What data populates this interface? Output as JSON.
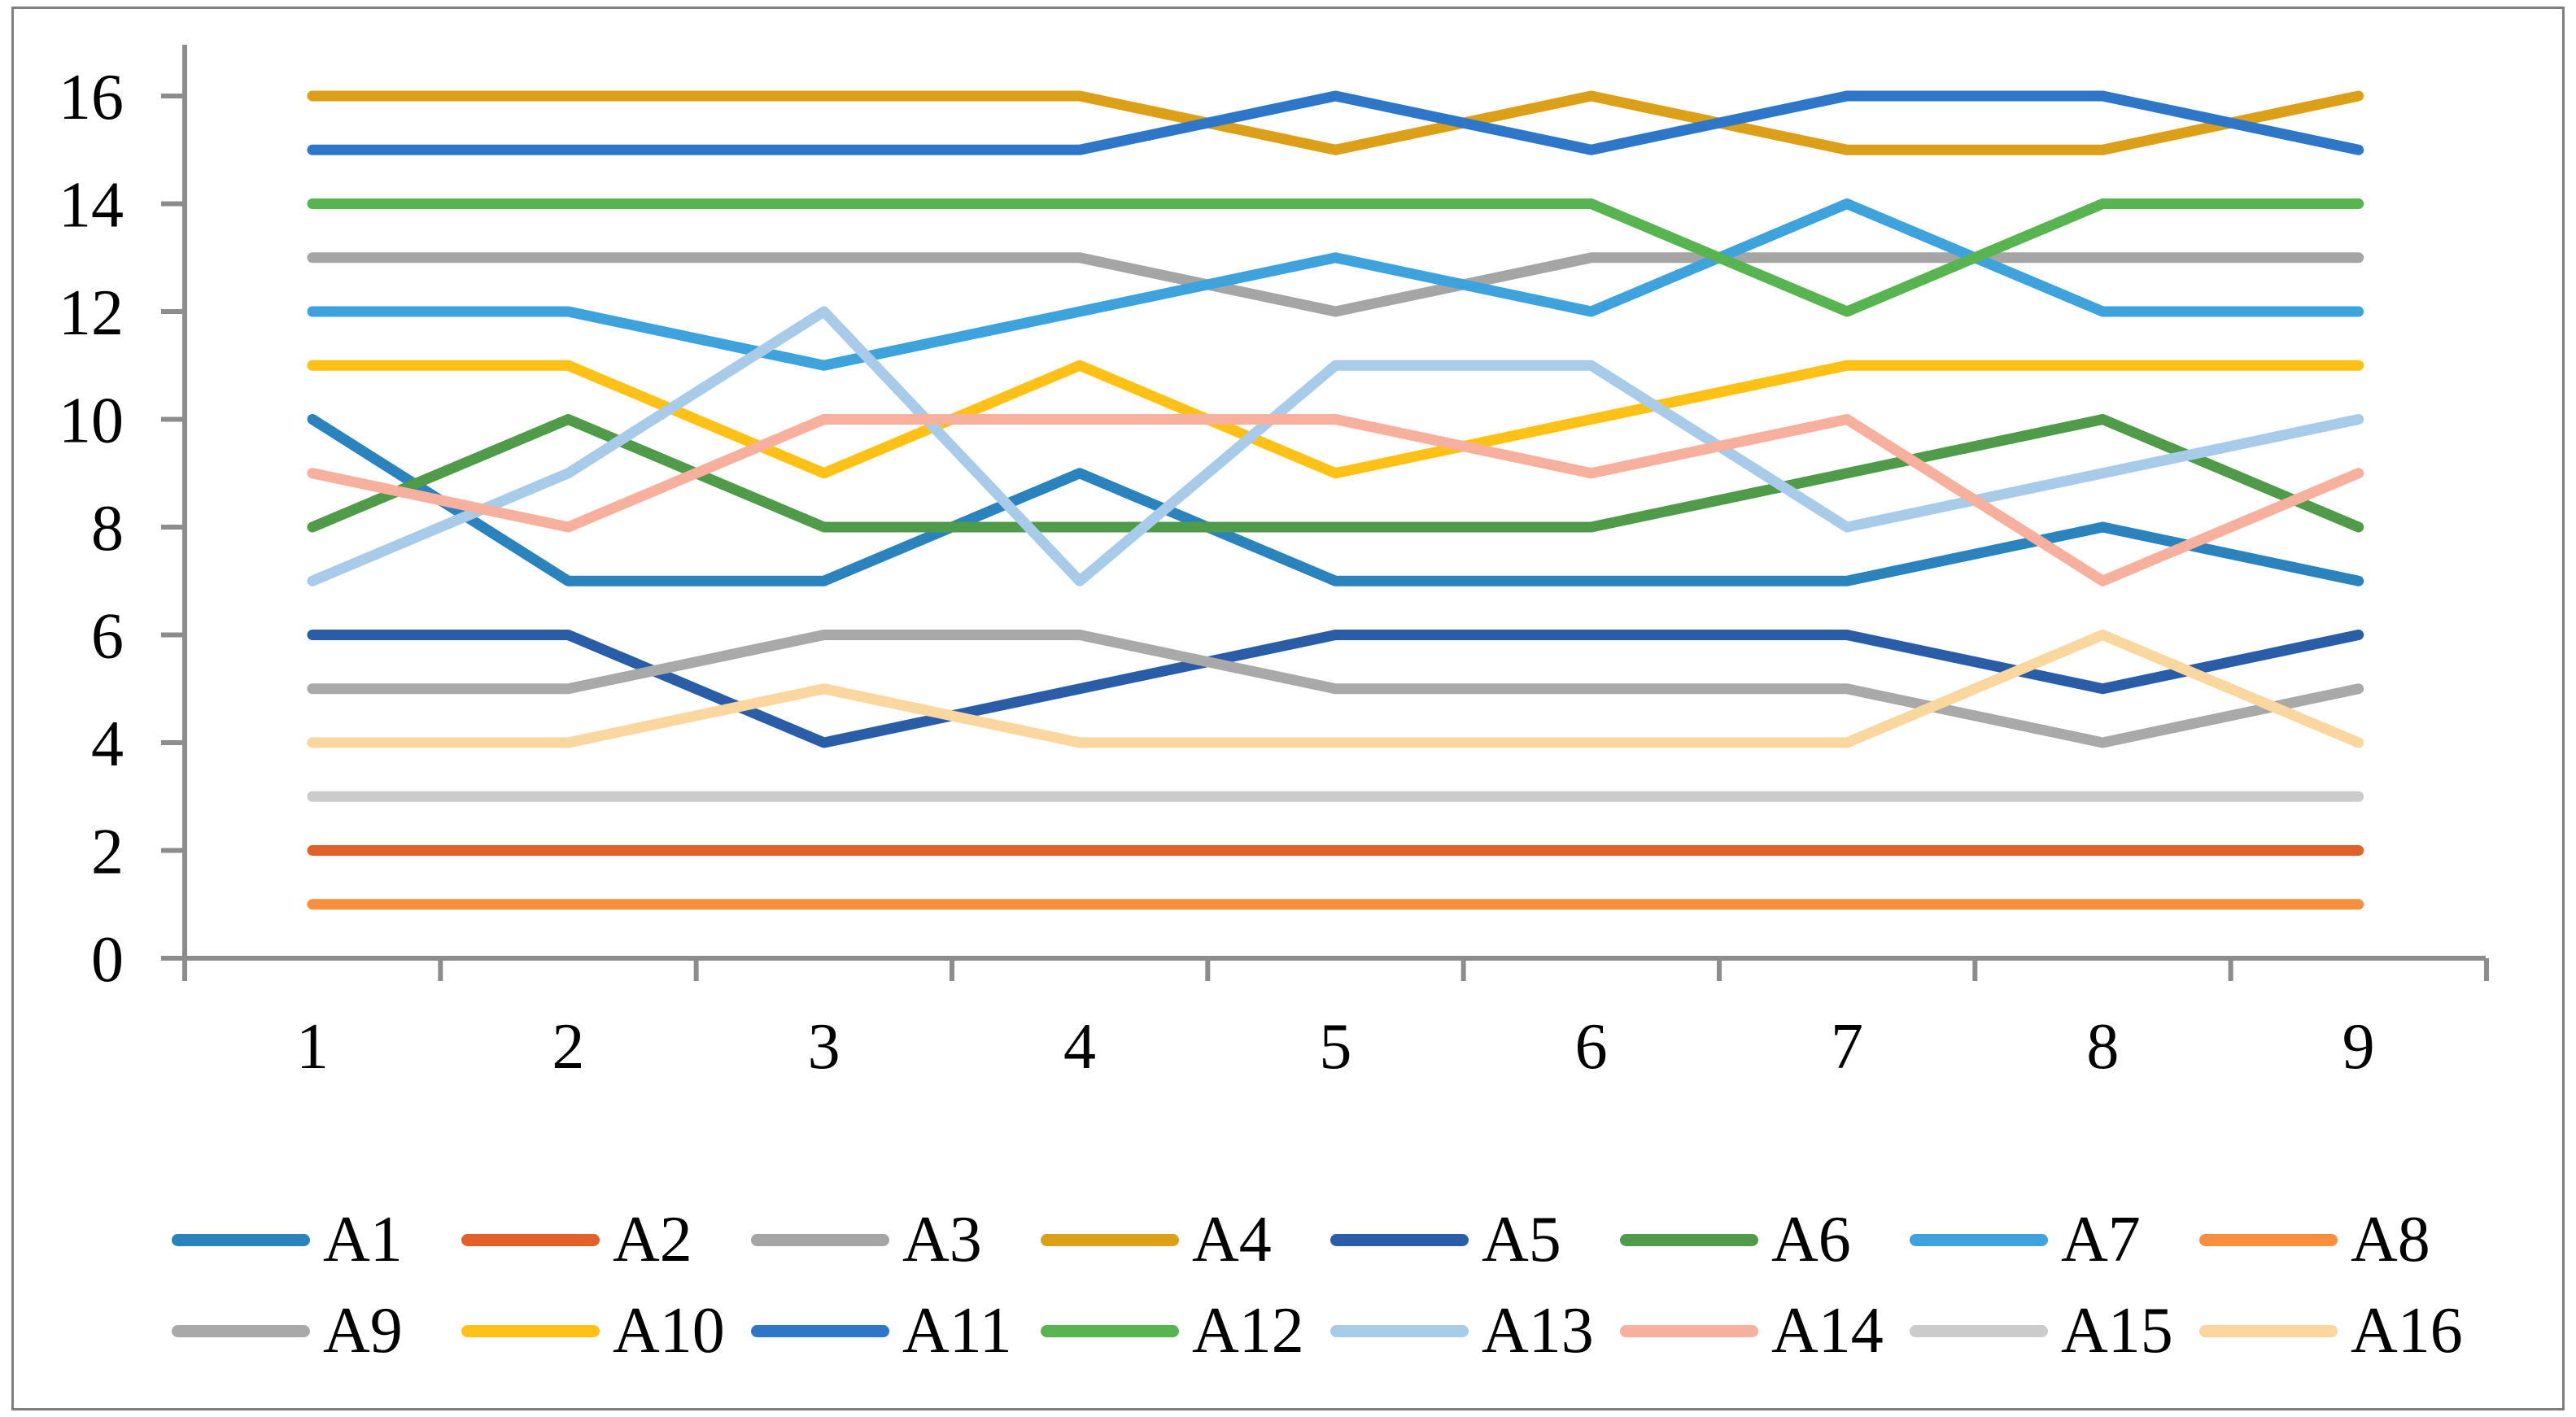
{
  "chart_data": {
    "type": "line",
    "title": "",
    "xlabel": "",
    "ylabel": "",
    "x": [
      1,
      2,
      3,
      4,
      5,
      6,
      7,
      8,
      9
    ],
    "ylim": [
      0,
      16
    ],
    "ytick_step": 2,
    "grid": false,
    "legend_position": "bottom",
    "axis_color": "#8c8c8c",
    "text_color": "#000000",
    "border_color": "#7f7f7f",
    "series": [
      {
        "name": "A1",
        "color": "#2b83be",
        "values": [
          10,
          7,
          7,
          9,
          7,
          7,
          7,
          8,
          7
        ]
      },
      {
        "name": "A2",
        "color": "#e2602a",
        "values": [
          2,
          2,
          2,
          2,
          2,
          2,
          2,
          2,
          2
        ]
      },
      {
        "name": "A3",
        "color": "#a5a5a5",
        "values": [
          13,
          13,
          13,
          13,
          12,
          13,
          13,
          13,
          13
        ]
      },
      {
        "name": "A4",
        "color": "#dca018",
        "values": [
          16,
          16,
          16,
          16,
          15,
          16,
          15,
          15,
          16
        ]
      },
      {
        "name": "A5",
        "color": "#2a5da8",
        "values": [
          6,
          6,
          4,
          5,
          6,
          6,
          6,
          5,
          6
        ]
      },
      {
        "name": "A6",
        "color": "#4f9b49",
        "values": [
          8,
          10,
          8,
          8,
          8,
          8,
          9,
          10,
          8
        ]
      },
      {
        "name": "A7",
        "color": "#3ea3dd",
        "values": [
          12,
          12,
          11,
          12,
          13,
          12,
          14,
          12,
          12
        ]
      },
      {
        "name": "A8",
        "color": "#f78f3e",
        "values": [
          1,
          1,
          1,
          1,
          1,
          1,
          1,
          1,
          1
        ]
      },
      {
        "name": "A9",
        "color": "#a9a9a9",
        "values": [
          5,
          5,
          6,
          6,
          5,
          5,
          5,
          4,
          5
        ]
      },
      {
        "name": "A10",
        "color": "#ffc115",
        "values": [
          11,
          11,
          9,
          11,
          9,
          10,
          11,
          11,
          11
        ]
      },
      {
        "name": "A11",
        "color": "#2e77c8",
        "values": [
          15,
          15,
          15,
          15,
          16,
          15,
          16,
          16,
          15
        ]
      },
      {
        "name": "A12",
        "color": "#58b450",
        "values": [
          14,
          14,
          14,
          14,
          14,
          14,
          12,
          14,
          14
        ]
      },
      {
        "name": "A13",
        "color": "#a9cbea",
        "values": [
          7,
          9,
          12,
          7,
          11,
          11,
          8,
          9,
          10
        ]
      },
      {
        "name": "A14",
        "color": "#f6b09d",
        "values": [
          9,
          8,
          10,
          10,
          10,
          9,
          10,
          7,
          9
        ]
      },
      {
        "name": "A15",
        "color": "#cbcbcb",
        "values": [
          3,
          3,
          3,
          3,
          3,
          3,
          3,
          3,
          3
        ]
      },
      {
        "name": "A16",
        "color": "#fad79e",
        "values": [
          4,
          4,
          5,
          4,
          4,
          4,
          4,
          6,
          4
        ]
      }
    ]
  }
}
